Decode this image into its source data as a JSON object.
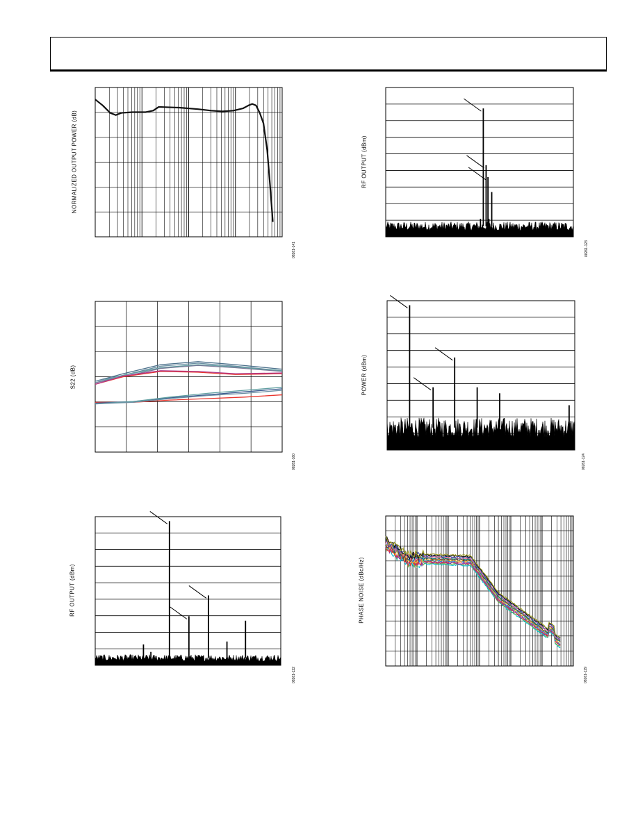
{
  "page": {
    "width": 918,
    "height": 1188
  },
  "chart_data": [
    {
      "id": "left-top",
      "type": "line",
      "ylabel": "NORMALIZED OUTPUT POWER (dB)",
      "fig_id": "08261-141",
      "xscale": "log",
      "grid": true,
      "series": [
        {
          "color": "#111111",
          "x": [
            0,
            0.04,
            0.08,
            0.11,
            0.14,
            0.2,
            0.27,
            0.31,
            0.34,
            0.45,
            0.55,
            0.62,
            0.68,
            0.74,
            0.79,
            0.82,
            0.84,
            0.86,
            0.88,
            0.9,
            0.92,
            0.935,
            0.95
          ],
          "y": [
            0.92,
            0.88,
            0.83,
            0.815,
            0.83,
            0.835,
            0.835,
            0.845,
            0.87,
            0.865,
            0.855,
            0.845,
            0.84,
            0.845,
            0.86,
            0.88,
            0.89,
            0.88,
            0.83,
            0.76,
            0.58,
            0.35,
            0.1
          ]
        }
      ]
    },
    {
      "id": "right-top",
      "type": "spectrum",
      "ylabel": "RF OUTPUT (dBm)",
      "fig_id": "08261-123",
      "grid": "horizontal",
      "peaks": [
        {
          "x": 0.52,
          "y": 0.86
        },
        {
          "x": 0.535,
          "y": 0.48
        },
        {
          "x": 0.545,
          "y": 0.4
        },
        {
          "x": 0.565,
          "y": 0.3
        },
        {
          "x": 0.505,
          "y": 0.12
        },
        {
          "x": 0.55,
          "y": 0.12
        }
      ],
      "noise_floor": 0.07
    },
    {
      "id": "left-mid",
      "type": "line",
      "ylabel": "S22 (dB)",
      "fig_id": "08261-160",
      "grid": true,
      "series": [
        {
          "color": "#4a6f8a",
          "x": [
            0,
            0.15,
            0.35,
            0.55,
            0.75,
            1
          ],
          "y": [
            0.47,
            0.52,
            0.58,
            0.6,
            0.58,
            0.55
          ]
        },
        {
          "color": "#6b8fa3",
          "x": [
            0,
            0.15,
            0.35,
            0.55,
            0.75,
            1
          ],
          "y": [
            0.47,
            0.51,
            0.57,
            0.59,
            0.57,
            0.54
          ]
        },
        {
          "color": "#5f9ea0",
          "x": [
            0,
            0.15,
            0.35,
            0.55,
            0.75,
            1
          ],
          "y": [
            0.46,
            0.51,
            0.56,
            0.58,
            0.565,
            0.54
          ]
        },
        {
          "color": "#7a7a99",
          "x": [
            0,
            0.15,
            0.35,
            0.55,
            0.75,
            1
          ],
          "y": [
            0.46,
            0.5,
            0.555,
            0.575,
            0.56,
            0.535
          ]
        },
        {
          "color": "#e8352c",
          "x": [
            0,
            0.15,
            0.35,
            0.55,
            0.75,
            1
          ],
          "y": [
            0.45,
            0.5,
            0.535,
            0.53,
            0.515,
            0.52
          ]
        },
        {
          "color": "#b03a8a",
          "x": [
            0,
            0.15,
            0.35,
            0.55,
            0.75,
            1
          ],
          "y": [
            0.45,
            0.505,
            0.54,
            0.535,
            0.52,
            0.525
          ]
        },
        {
          "color": "#e8352c",
          "x": [
            0,
            0.2,
            0.4,
            0.6,
            0.8,
            1
          ],
          "y": [
            0.33,
            0.33,
            0.345,
            0.355,
            0.365,
            0.38
          ]
        },
        {
          "color": "#3b5a8f",
          "x": [
            0,
            0.2,
            0.4,
            0.6,
            0.8,
            1
          ],
          "y": [
            0.325,
            0.335,
            0.36,
            0.38,
            0.4,
            0.42
          ]
        },
        {
          "color": "#5f9ea0",
          "x": [
            0,
            0.2,
            0.4,
            0.6,
            0.8,
            1
          ],
          "y": [
            0.32,
            0.335,
            0.365,
            0.39,
            0.41,
            0.43
          ]
        },
        {
          "color": "#6b8fa3",
          "x": [
            0,
            0.2,
            0.4,
            0.6,
            0.8,
            1
          ],
          "y": [
            0.32,
            0.33,
            0.355,
            0.375,
            0.39,
            0.41
          ]
        }
      ]
    },
    {
      "id": "right-mid",
      "type": "spectrum",
      "ylabel": "POWER (dBm)",
      "fig_id": "08261-124",
      "grid": "horizontal",
      "peaks": [
        {
          "x": 0.12,
          "y": 0.97
        },
        {
          "x": 0.245,
          "y": 0.42
        },
        {
          "x": 0.36,
          "y": 0.62
        },
        {
          "x": 0.48,
          "y": 0.42
        },
        {
          "x": 0.6,
          "y": 0.38
        },
        {
          "x": 0.97,
          "y": 0.3
        }
      ],
      "noise_floor": 0.15
    },
    {
      "id": "left-bottom",
      "type": "spectrum",
      "ylabel": "RF OUTPUT (dBm)",
      "fig_id": "08261-122",
      "grid": "horizontal",
      "peaks": [
        {
          "x": 0.4,
          "y": 0.97
        },
        {
          "x": 0.505,
          "y": 0.33
        },
        {
          "x": 0.61,
          "y": 0.47
        },
        {
          "x": 0.71,
          "y": 0.16
        },
        {
          "x": 0.81,
          "y": 0.3
        },
        {
          "x": 0.26,
          "y": 0.14
        },
        {
          "x": 0.3,
          "y": 0.09
        }
      ],
      "noise_floor": 0.05
    },
    {
      "id": "right-bottom",
      "type": "line",
      "ylabel": "PHASE NOISE (dBc/Hz)",
      "fig_id": "08261-129",
      "xscale": "log",
      "grid": true,
      "series_colors": [
        "#00bcd4",
        "#7cb342",
        "#8e24aa",
        "#e53935",
        "#1e88e5",
        "#fbc02d",
        "#5d4037",
        "#00897b",
        "#f06292",
        "#3949ab",
        "#111111",
        "#9e9d24"
      ]
    }
  ]
}
